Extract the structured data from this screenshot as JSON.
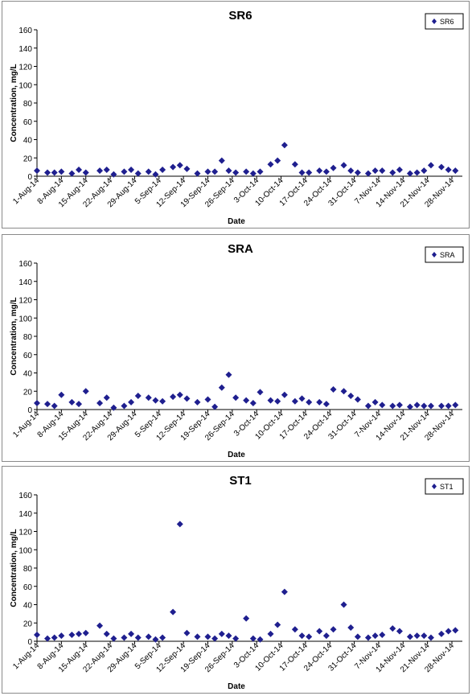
{
  "chart_data": [
    {
      "type": "scatter",
      "title": "SR6",
      "xlabel": "Date",
      "ylabel": "Concentration, mg/L",
      "ylim": [
        0,
        160
      ],
      "yticks": [
        0,
        20,
        40,
        60,
        80,
        100,
        120,
        140,
        160
      ],
      "xlim": [
        "2014-08-01",
        "2014-12-01"
      ],
      "xtick_labels": [
        "1-Aug-14",
        "8-Aug-14",
        "15-Aug-14",
        "22-Aug-14",
        "29-Aug-14",
        "5-Sep-14",
        "12-Sep-14",
        "19-Sep-14",
        "26-Sep-14",
        "3-Oct-14",
        "10-Oct-14",
        "17-Oct-14",
        "24-Oct-14",
        "31-Oct-14",
        "7-Nov-14",
        "14-Nov-14",
        "21-Nov-14",
        "28-Nov-14"
      ],
      "grid": false,
      "legend_position": "top-right",
      "marker_color": "#1f1f8f",
      "series": [
        {
          "name": "SR6",
          "x": [
            "2014-08-01",
            "2014-08-04",
            "2014-08-06",
            "2014-08-08",
            "2014-08-11",
            "2014-08-13",
            "2014-08-15",
            "2014-08-19",
            "2014-08-21",
            "2014-08-23",
            "2014-08-26",
            "2014-08-28",
            "2014-08-30",
            "2014-09-02",
            "2014-09-04",
            "2014-09-06",
            "2014-09-09",
            "2014-09-11",
            "2014-09-13",
            "2014-09-16",
            "2014-09-19",
            "2014-09-21",
            "2014-09-23",
            "2014-09-25",
            "2014-09-27",
            "2014-09-30",
            "2014-10-02",
            "2014-10-04",
            "2014-10-07",
            "2014-10-09",
            "2014-10-11",
            "2014-10-14",
            "2014-10-16",
            "2014-10-18",
            "2014-10-21",
            "2014-10-23",
            "2014-10-25",
            "2014-10-28",
            "2014-10-30",
            "2014-11-01",
            "2014-11-04",
            "2014-11-06",
            "2014-11-08",
            "2014-11-11",
            "2014-11-13",
            "2014-11-16",
            "2014-11-18",
            "2014-11-20",
            "2014-11-22",
            "2014-11-25",
            "2014-11-27",
            "2014-11-29"
          ],
          "values": [
            6,
            4,
            4,
            5,
            3,
            7,
            4,
            6,
            7,
            2,
            5,
            7,
            3,
            5,
            2,
            7,
            10,
            12,
            8,
            3,
            5,
            5,
            17,
            6,
            4,
            5,
            3,
            5,
            13,
            17,
            34,
            13,
            4,
            4,
            6,
            5,
            9,
            12,
            6,
            4,
            3,
            6,
            6,
            4,
            7,
            3,
            4,
            6,
            12,
            10,
            7,
            6
          ]
        }
      ]
    },
    {
      "type": "scatter",
      "title": "SRA",
      "xlabel": "Date",
      "ylabel": "Concentration, mg/L",
      "ylim": [
        0,
        160
      ],
      "yticks": [
        0,
        20,
        40,
        60,
        80,
        100,
        120,
        140,
        160
      ],
      "xlim": [
        "2014-08-01",
        "2014-12-01"
      ],
      "xtick_labels": [
        "1-Aug-14",
        "8-Aug-14",
        "15-Aug-14",
        "22-Aug-14",
        "29-Aug-14",
        "5-Sep-14",
        "12-Sep-14",
        "19-Sep-14",
        "26-Sep-14",
        "3-Oct-14",
        "10-Oct-14",
        "17-Oct-14",
        "24-Oct-14",
        "31-Oct-14",
        "7-Nov-14",
        "14-Nov-14",
        "21-Nov-14",
        "28-Nov-14"
      ],
      "grid": false,
      "legend_position": "top-right",
      "marker_color": "#1f1f8f",
      "series": [
        {
          "name": "SRA",
          "x": [
            "2014-08-01",
            "2014-08-04",
            "2014-08-06",
            "2014-08-08",
            "2014-08-11",
            "2014-08-13",
            "2014-08-15",
            "2014-08-19",
            "2014-08-21",
            "2014-08-23",
            "2014-08-26",
            "2014-08-28",
            "2014-08-30",
            "2014-09-02",
            "2014-09-04",
            "2014-09-06",
            "2014-09-09",
            "2014-09-11",
            "2014-09-13",
            "2014-09-16",
            "2014-09-19",
            "2014-09-21",
            "2014-09-23",
            "2014-09-25",
            "2014-09-27",
            "2014-09-30",
            "2014-10-02",
            "2014-10-04",
            "2014-10-07",
            "2014-10-09",
            "2014-10-11",
            "2014-10-14",
            "2014-10-16",
            "2014-10-18",
            "2014-10-21",
            "2014-10-23",
            "2014-10-25",
            "2014-10-28",
            "2014-10-30",
            "2014-11-01",
            "2014-11-04",
            "2014-11-06",
            "2014-11-08",
            "2014-11-11",
            "2014-11-13",
            "2014-11-16",
            "2014-11-18",
            "2014-11-20",
            "2014-11-22",
            "2014-11-25",
            "2014-11-27",
            "2014-11-29"
          ],
          "values": [
            7,
            6,
            4,
            16,
            8,
            6,
            20,
            7,
            13,
            2,
            4,
            8,
            15,
            13,
            10,
            9,
            14,
            16,
            12,
            8,
            11,
            3,
            24,
            38,
            13,
            10,
            7,
            19,
            10,
            9,
            16,
            9,
            12,
            8,
            8,
            6,
            22,
            20,
            15,
            11,
            4,
            8,
            5,
            4,
            5,
            3,
            5,
            4,
            4,
            4,
            4,
            5
          ]
        }
      ]
    },
    {
      "type": "scatter",
      "title": "ST1",
      "xlabel": "Date",
      "ylabel": "Concentration, mg/L",
      "ylim": [
        0,
        160
      ],
      "yticks": [
        0,
        20,
        40,
        60,
        80,
        100,
        120,
        140,
        160
      ],
      "xlim": [
        "2014-08-01",
        "2014-12-01"
      ],
      "xtick_labels": [
        "1-Aug-14",
        "8-Aug-14",
        "15-Aug-14",
        "22-Aug-14",
        "29-Aug-14",
        "5-Sep-14",
        "12-Sep-14",
        "19-Sep-14",
        "26-Sep-14",
        "3-Oct-14",
        "10-Oct-14",
        "17-Oct-14",
        "24-Oct-14",
        "31-Oct-14",
        "7-Nov-14",
        "14-Nov-14",
        "21-Nov-14",
        "28-Nov-14"
      ],
      "grid": false,
      "legend_position": "top-right",
      "marker_color": "#1f1f8f",
      "series": [
        {
          "name": "ST1",
          "x": [
            "2014-08-01",
            "2014-08-04",
            "2014-08-06",
            "2014-08-08",
            "2014-08-11",
            "2014-08-13",
            "2014-08-15",
            "2014-08-19",
            "2014-08-21",
            "2014-08-23",
            "2014-08-26",
            "2014-08-28",
            "2014-08-30",
            "2014-09-02",
            "2014-09-04",
            "2014-09-06",
            "2014-09-09",
            "2014-09-11",
            "2014-09-13",
            "2014-09-16",
            "2014-09-19",
            "2014-09-21",
            "2014-09-23",
            "2014-09-25",
            "2014-09-27",
            "2014-09-30",
            "2014-10-02",
            "2014-10-04",
            "2014-10-07",
            "2014-10-09",
            "2014-10-11",
            "2014-10-14",
            "2014-10-16",
            "2014-10-18",
            "2014-10-21",
            "2014-10-23",
            "2014-10-25",
            "2014-10-28",
            "2014-10-30",
            "2014-11-01",
            "2014-11-04",
            "2014-11-06",
            "2014-11-08",
            "2014-11-11",
            "2014-11-13",
            "2014-11-16",
            "2014-11-18",
            "2014-11-20",
            "2014-11-22",
            "2014-11-25",
            "2014-11-27",
            "2014-11-29"
          ],
          "values": [
            7,
            3,
            4,
            6,
            7,
            8,
            9,
            17,
            8,
            3,
            4,
            8,
            4,
            5,
            2,
            4,
            32,
            128,
            9,
            5,
            5,
            3,
            8,
            6,
            3,
            25,
            3,
            2,
            8,
            18,
            54,
            13,
            6,
            5,
            11,
            6,
            13,
            40,
            15,
            5,
            4,
            6,
            7,
            14,
            11,
            5,
            6,
            6,
            4,
            8,
            11,
            12
          ]
        }
      ]
    }
  ]
}
